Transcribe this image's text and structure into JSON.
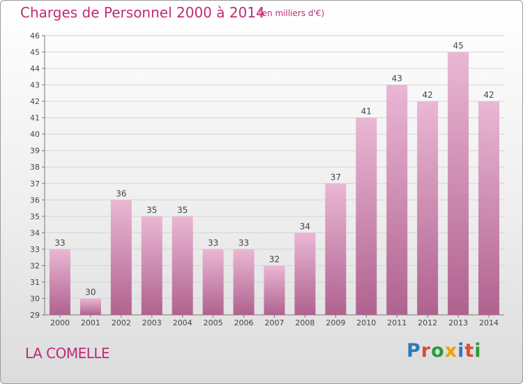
{
  "header": {
    "title": "Charges de Personnel 2000 à 2014",
    "unit": "(en milliers d'€)"
  },
  "footer": {
    "commune": "LA COMELLE",
    "logo": [
      {
        "char": "P",
        "color": "#2a7bc0"
      },
      {
        "char": "r",
        "color": "#e04a2f"
      },
      {
        "char": "o",
        "color": "#2a9a3a"
      },
      {
        "char": "x",
        "color": "#f2a100"
      },
      {
        "char": "i",
        "color": "#2a7bc0"
      },
      {
        "char": "t",
        "color": "#e04a2f"
      },
      {
        "char": "i",
        "color": "#2a9a3a"
      }
    ]
  },
  "colors": {
    "bar_light": "#eab7d4",
    "bar_dark": "#b0628f",
    "accent": "#c02a74"
  },
  "chart_data": {
    "type": "bar",
    "categories": [
      "2000",
      "2001",
      "2002",
      "2003",
      "2004",
      "2005",
      "2006",
      "2007",
      "2008",
      "2009",
      "2010",
      "2011",
      "2012",
      "2013",
      "2014"
    ],
    "values": [
      33,
      30,
      36,
      35,
      35,
      33,
      33,
      32,
      34,
      37,
      41,
      43,
      42,
      45,
      42
    ],
    "ylim": [
      29,
      46
    ],
    "yticks": [
      "29",
      "30",
      "31",
      "32",
      "33",
      "34",
      "35",
      "36",
      "37",
      "38",
      "39",
      "40",
      "41",
      "42",
      "43",
      "44",
      "45",
      "46"
    ],
    "grid": true,
    "data_labels": true
  }
}
